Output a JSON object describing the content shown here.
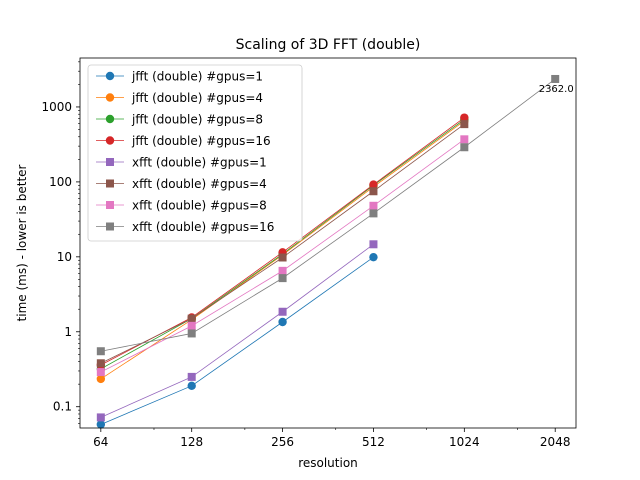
{
  "chart_data": {
    "type": "line",
    "title": "Scaling of 3D FFT (double)",
    "xlabel": "resolution",
    "ylabel": "time (ms) -  lower is better",
    "xscale": "log2",
    "yscale": "log10",
    "xlim": [
      54.6,
      2400
    ],
    "ylim": [
      0.052,
      4500
    ],
    "xticks": [
      64,
      128,
      256,
      512,
      1024,
      2048
    ],
    "xtick_labels": [
      "64",
      "128",
      "256",
      "512",
      "1024",
      "2048"
    ],
    "yticks": [
      0.1,
      1,
      10,
      100,
      1000
    ],
    "ytick_labels": [
      "0.1",
      "1",
      "10",
      "100",
      "1000"
    ],
    "grid": false,
    "legend": "upper left",
    "series": [
      {
        "name": "jfft (double) #gpus=1",
        "color": "#1f77b4",
        "marker": "circle",
        "x": [
          64,
          128,
          256,
          512
        ],
        "y": [
          0.058,
          0.19,
          1.35,
          9.9
        ]
      },
      {
        "name": "jfft (double) #gpus=4",
        "color": "#ff7f0e",
        "marker": "circle",
        "x": [
          64,
          128,
          256,
          512,
          1024
        ],
        "y": [
          0.235,
          1.45,
          10.6,
          86,
          650
        ]
      },
      {
        "name": "jfft (double) #gpus=8",
        "color": "#2ca02c",
        "marker": "circle",
        "x": [
          64,
          128,
          256,
          512,
          1024
        ],
        "y": [
          0.32,
          1.5,
          10.9,
          90,
          680
        ]
      },
      {
        "name": "jfft (double) #gpus=16",
        "color": "#d62728",
        "marker": "circle",
        "x": [
          64,
          128,
          256,
          512,
          1024
        ],
        "y": [
          0.36,
          1.55,
          11.5,
          92,
          720
        ]
      },
      {
        "name": "xfft (double) #gpus=1",
        "color": "#9467bd",
        "marker": "square",
        "x": [
          64,
          128,
          256,
          512
        ],
        "y": [
          0.072,
          0.25,
          1.85,
          14.7
        ]
      },
      {
        "name": "xfft (double) #gpus=4",
        "color": "#8c564b",
        "marker": "square",
        "x": [
          64,
          128,
          256,
          512,
          1024
        ],
        "y": [
          0.38,
          1.5,
          9.8,
          75,
          590
        ]
      },
      {
        "name": "xfft (double) #gpus=8",
        "color": "#e377c2",
        "marker": "square",
        "x": [
          64,
          128,
          256,
          512,
          1024
        ],
        "y": [
          0.29,
          1.2,
          6.5,
          48,
          370
        ]
      },
      {
        "name": "xfft (double) #gpus=16",
        "color": "#7f7f7f",
        "marker": "square",
        "x": [
          64,
          128,
          256,
          512,
          1024,
          2048
        ],
        "y": [
          0.55,
          0.95,
          5.2,
          38,
          290,
          2362.0
        ]
      }
    ],
    "annotations": [
      {
        "text": "2362.0",
        "x": 2048,
        "y": 2362.0
      }
    ]
  }
}
